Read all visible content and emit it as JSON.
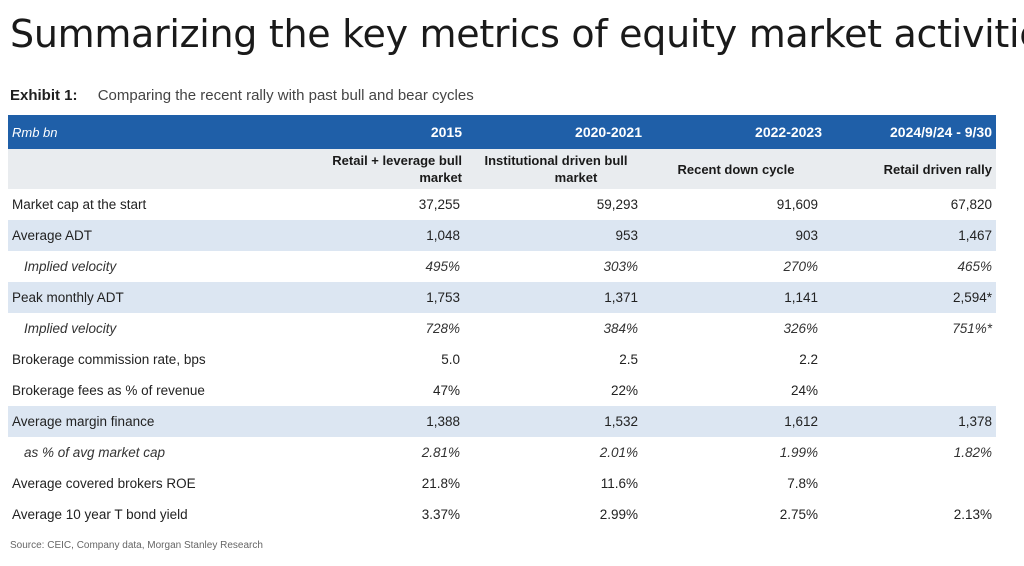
{
  "title": "Summarizing the key metrics of equity market activities",
  "exhibit": {
    "label": "Exhibit 1:",
    "text": "Comparing the recent rally with past bull and bear cycles"
  },
  "table": {
    "unit": "Rmb bn",
    "columns": [
      "2015",
      "2020-2021",
      "2022-2023",
      "2024/9/24 - 9/30"
    ],
    "subheaders": [
      [
        "Retail + leverage bull",
        "market"
      ],
      [
        "Institutional driven bull",
        "market"
      ],
      [
        "Recent down cycle"
      ],
      [
        "Retail driven rally"
      ]
    ],
    "rows": [
      {
        "label": "Market cap at the start",
        "values": [
          "37,255",
          "59,293",
          "91,609",
          "67,820"
        ],
        "shaded": false,
        "italic": false
      },
      {
        "label": "Average ADT",
        "values": [
          "1,048",
          "953",
          "903",
          "1,467"
        ],
        "shaded": true,
        "italic": false
      },
      {
        "label": "Implied velocity",
        "values": [
          "495%",
          "303%",
          "270%",
          "465%"
        ],
        "shaded": false,
        "italic": true
      },
      {
        "label": "Peak monthly ADT",
        "values": [
          "1,753",
          "1,371",
          "1,141",
          "2,594*"
        ],
        "shaded": true,
        "italic": false
      },
      {
        "label": "Implied velocity",
        "values": [
          "728%",
          "384%",
          "326%",
          "751%*"
        ],
        "shaded": false,
        "italic": true
      },
      {
        "label": "Brokerage commission rate, bps",
        "values": [
          "5.0",
          "2.5",
          "2.2",
          ""
        ],
        "shaded": false,
        "italic": false
      },
      {
        "label": "Brokerage fees as % of revenue",
        "values": [
          "47%",
          "22%",
          "24%",
          ""
        ],
        "shaded": false,
        "italic": false
      },
      {
        "label": "Average margin finance",
        "values": [
          "1,388",
          "1,532",
          "1,612",
          "1,378"
        ],
        "shaded": true,
        "italic": false
      },
      {
        "label": "as % of avg market cap",
        "values": [
          "2.81%",
          "2.01%",
          "1.99%",
          "1.82%"
        ],
        "shaded": false,
        "italic": true
      },
      {
        "label": "Average covered brokers ROE",
        "values": [
          "21.8%",
          "11.6%",
          "7.8%",
          ""
        ],
        "shaded": false,
        "italic": false
      },
      {
        "label": "Average 10 year T bond yield",
        "values": [
          "3.37%",
          "2.99%",
          "2.75%",
          "2.13%"
        ],
        "shaded": false,
        "italic": false
      }
    ]
  },
  "source": "Source: CEIC, Company data, Morgan Stanley Research"
}
